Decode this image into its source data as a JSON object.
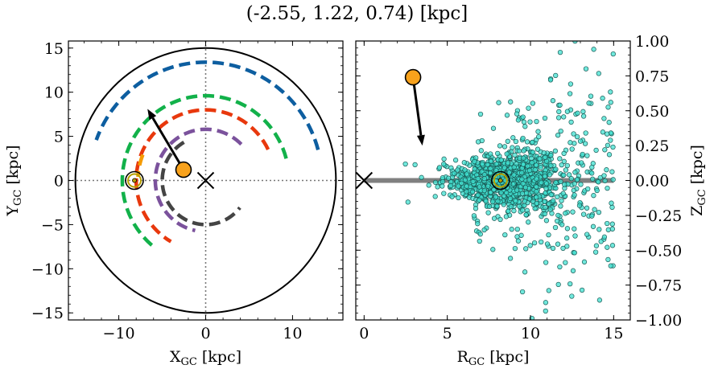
{
  "title": "(-2.55, 1.22, 0.74) [kpc]",
  "chart_data": [
    {
      "type": "line",
      "panel": "left",
      "xlabel": "X",
      "xlabel_sub": "GC",
      "xlabel_unit": " [kpc]",
      "ylabel": "Y",
      "ylabel_sub": "GC",
      "ylabel_unit": " [kpc]",
      "xlim": [
        -15.8,
        15.8
      ],
      "ylim": [
        -15.8,
        15.8
      ],
      "xticks": [
        {
          "v": -10,
          "label": "−10"
        },
        {
          "v": 0,
          "label": "0"
        },
        {
          "v": 10,
          "label": "10"
        }
      ],
      "yticks": [
        {
          "v": 15,
          "label": "15"
        },
        {
          "v": 10,
          "label": "10"
        },
        {
          "v": 5,
          "label": "5"
        },
        {
          "v": 0,
          "label": "0"
        },
        {
          "v": -5,
          "label": "−5"
        },
        {
          "v": -10,
          "label": "−10"
        },
        {
          "v": -15,
          "label": "−15"
        }
      ],
      "boundary_radius": 15,
      "spiral_arms": [
        {
          "color": "#0d5ea0",
          "radius": 13.4,
          "start_deg": 15,
          "end_deg": 160
        },
        {
          "color": "#12b14a",
          "radius": 9.6,
          "start_deg": 15,
          "end_deg": 233
        },
        {
          "color": "#e8380d",
          "radius": 8.0,
          "start_deg": 26,
          "end_deg": 240
        },
        {
          "color": "#7b529c",
          "radius": 5.8,
          "start_deg": 45,
          "end_deg": 258
        },
        {
          "color": "#444444",
          "radius": 5.0,
          "start_deg": 120,
          "end_deg": 322
        },
        {
          "color": "#f59b00",
          "radius": 7.8,
          "start_deg": 158,
          "end_deg": 177
        }
      ],
      "sun": {
        "x": -8.2,
        "y": 0.0,
        "color": "#b8a000"
      },
      "galactic_center": {
        "x": 0,
        "y": 0
      },
      "object": {
        "x": -2.55,
        "y": 1.22,
        "color": "#f8a21c"
      },
      "velocity_arrow_tip": {
        "x": -6.7,
        "y": 8.1
      }
    },
    {
      "type": "scatter",
      "panel": "right",
      "xlabel": "R",
      "xlabel_sub": "GC",
      "xlabel_unit": " [kpc]",
      "ylabel": "Z",
      "ylabel_sub": "GC",
      "ylabel_unit": " [kpc]",
      "xlim": [
        -0.5,
        16
      ],
      "ylim": [
        -1.0,
        1.0
      ],
      "xticks": [
        {
          "v": 0,
          "label": "0"
        },
        {
          "v": 5,
          "label": "5"
        },
        {
          "v": 10,
          "label": "10"
        },
        {
          "v": 15,
          "label": "15"
        }
      ],
      "yticks": [
        {
          "v": 1.0,
          "label": "1.00"
        },
        {
          "v": 0.75,
          "label": "0.75"
        },
        {
          "v": 0.5,
          "label": "0.50"
        },
        {
          "v": 0.25,
          "label": "0.25"
        },
        {
          "v": 0.0,
          "label": "0.00"
        },
        {
          "v": -0.25,
          "label": "−0.25"
        },
        {
          "v": -0.5,
          "label": "−0.50"
        },
        {
          "v": -0.75,
          "label": "−0.75"
        },
        {
          "v": -1.0,
          "label": "−1.00"
        }
      ],
      "disk_plane": {
        "x_start": 0,
        "x_end": 15,
        "z": 0,
        "color": "#808080"
      },
      "star_color": "#40e0d0",
      "star_edge_color": "#1a5a55",
      "star_count": 1500,
      "sun": {
        "x": 8.2,
        "z": 0.0,
        "color": "#b8a000"
      },
      "galactic_center": {
        "x": 0,
        "z": 0
      },
      "object": {
        "x": 2.94,
        "z": 0.74,
        "color": "#f8a21c"
      },
      "velocity_arrow_tip": {
        "x": 3.5,
        "z": 0.25
      }
    }
  ]
}
